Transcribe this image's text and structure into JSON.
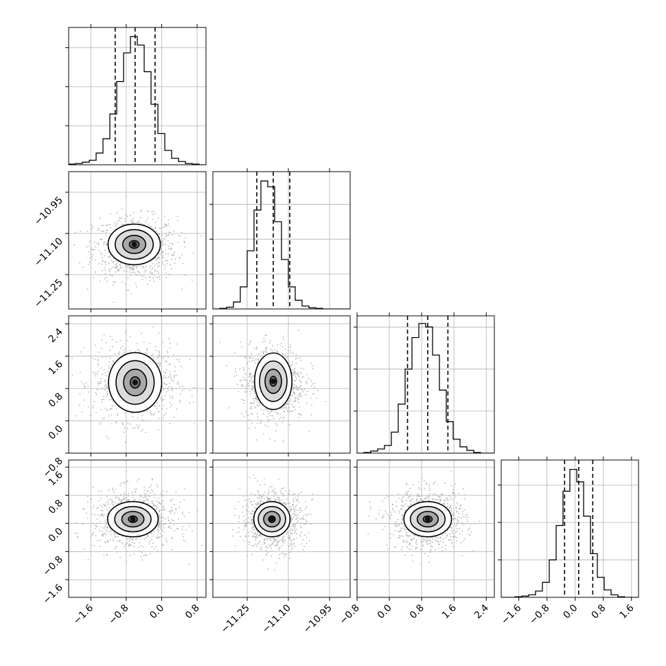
{
  "chart_data": {
    "type": "corner",
    "grid": true,
    "parameters": [
      {
        "range": [
          -2.1,
          1.0
        ],
        "ticks": [
          -1.6,
          -0.8,
          0.0,
          0.8
        ],
        "tick_labels": [
          "−1.6",
          "−0.8",
          "0.0",
          "0.8"
        ],
        "mean": -0.6,
        "sigma": 0.45,
        "quantiles": [
          -1.05,
          -0.6,
          -0.15
        ],
        "hist_bins": {
          "start": -2.1,
          "width": 0.155,
          "counts": [
            1,
            2,
            4,
            7,
            18,
            40,
            78,
            128,
            172,
            197,
            184,
            143,
            93,
            48,
            22,
            10,
            5,
            2,
            1,
            0
          ]
        },
        "hist_ylim": [
          0,
          211
        ],
        "hist_yticks": [
          60,
          120,
          180
        ]
      },
      {
        "range": [
          -11.375,
          -10.875
        ],
        "ticks": [
          -11.25,
          -11.1,
          -10.95
        ],
        "tick_labels": [
          "−11.25",
          "−11.10",
          "−10.95"
        ],
        "mean": -11.155,
        "sigma": 0.055,
        "quantiles": [
          -11.215,
          -11.155,
          -11.095
        ],
        "hist_bins": {
          "start": -11.375,
          "width": 0.025,
          "counts": [
            0,
            1,
            3,
            12,
            38,
            100,
            170,
            220,
            210,
            150,
            85,
            38,
            15,
            5,
            2,
            1,
            0,
            0,
            0,
            0
          ]
        },
        "hist_ylim": [
          0,
          236
        ],
        "hist_yticks": [
          60,
          120,
          180
        ]
      },
      {
        "range": [
          -0.8,
          2.6
        ],
        "ticks": [
          -0.8,
          0.0,
          0.8,
          1.6,
          2.4
        ],
        "tick_labels": [
          "−0.8",
          "0.0",
          "0.8",
          "1.6",
          "2.4"
        ],
        "mean": 0.95,
        "sigma": 0.45,
        "quantiles": [
          0.45,
          0.95,
          1.45
        ],
        "hist_bins": {
          "start": -0.8,
          "width": 0.17,
          "counts": [
            0,
            1,
            3,
            6,
            11,
            30,
            70,
            120,
            165,
            185,
            180,
            140,
            90,
            45,
            20,
            9,
            4,
            1,
            0,
            0
          ]
        },
        "hist_ylim": [
          0,
          196
        ],
        "hist_yticks": [
          60,
          120,
          180
        ]
      },
      {
        "range": [
          -2.1,
          1.8
        ],
        "ticks": [
          -1.6,
          -0.8,
          0.0,
          0.8,
          1.6
        ],
        "tick_labels": [
          "−1.6",
          "−0.8",
          "0.0",
          "0.8",
          "1.6"
        ],
        "mean": 0.1,
        "sigma": 0.4,
        "quantiles": [
          -0.3,
          0.1,
          0.5
        ],
        "hist_bins": {
          "start": -2.1,
          "width": 0.195,
          "counts": [
            0,
            0,
            1,
            2,
            4,
            10,
            24,
            60,
            115,
            170,
            205,
            185,
            130,
            70,
            32,
            12,
            4,
            1,
            0,
            0
          ]
        },
        "hist_ylim": [
          0,
          220
        ],
        "hist_yticks": [
          60,
          120,
          180
        ]
      }
    ],
    "pairs": [
      {
        "row": 1,
        "col": 0,
        "mode": [
          -0.62,
          -11.14
        ],
        "contour_sigma": [
          [
            0.11,
            0.014
          ],
          [
            0.26,
            0.033
          ],
          [
            0.43,
            0.054
          ],
          [
            0.59,
            0.074
          ]
        ]
      },
      {
        "row": 2,
        "col": 0,
        "mode": [
          -0.6,
          0.95
        ],
        "contour_sigma": [
          [
            0.11,
            0.14
          ],
          [
            0.26,
            0.33
          ],
          [
            0.43,
            0.54
          ],
          [
            0.6,
            0.74
          ]
        ]
      },
      {
        "row": 2,
        "col": 1,
        "mode": [
          -11.155,
          0.98
        ],
        "contour_sigma": [
          [
            0.012,
            0.12
          ],
          [
            0.03,
            0.3
          ],
          [
            0.05,
            0.5
          ],
          [
            0.068,
            0.7
          ]
        ]
      },
      {
        "row": 3,
        "col": 0,
        "mode": [
          -0.65,
          0.12
        ],
        "contour_sigma": [
          [
            0.1,
            0.09
          ],
          [
            0.25,
            0.22
          ],
          [
            0.41,
            0.36
          ],
          [
            0.57,
            0.5
          ]
        ]
      },
      {
        "row": 3,
        "col": 1,
        "mode": [
          -11.16,
          0.12
        ],
        "contour_sigma": [
          [
            0.012,
            0.09
          ],
          [
            0.03,
            0.22
          ],
          [
            0.05,
            0.36
          ],
          [
            0.066,
            0.5
          ]
        ]
      },
      {
        "row": 3,
        "col": 2,
        "mode": [
          0.95,
          0.12
        ],
        "contour_sigma": [
          [
            0.11,
            0.09
          ],
          [
            0.26,
            0.22
          ],
          [
            0.43,
            0.36
          ],
          [
            0.59,
            0.5
          ]
        ]
      }
    ]
  }
}
